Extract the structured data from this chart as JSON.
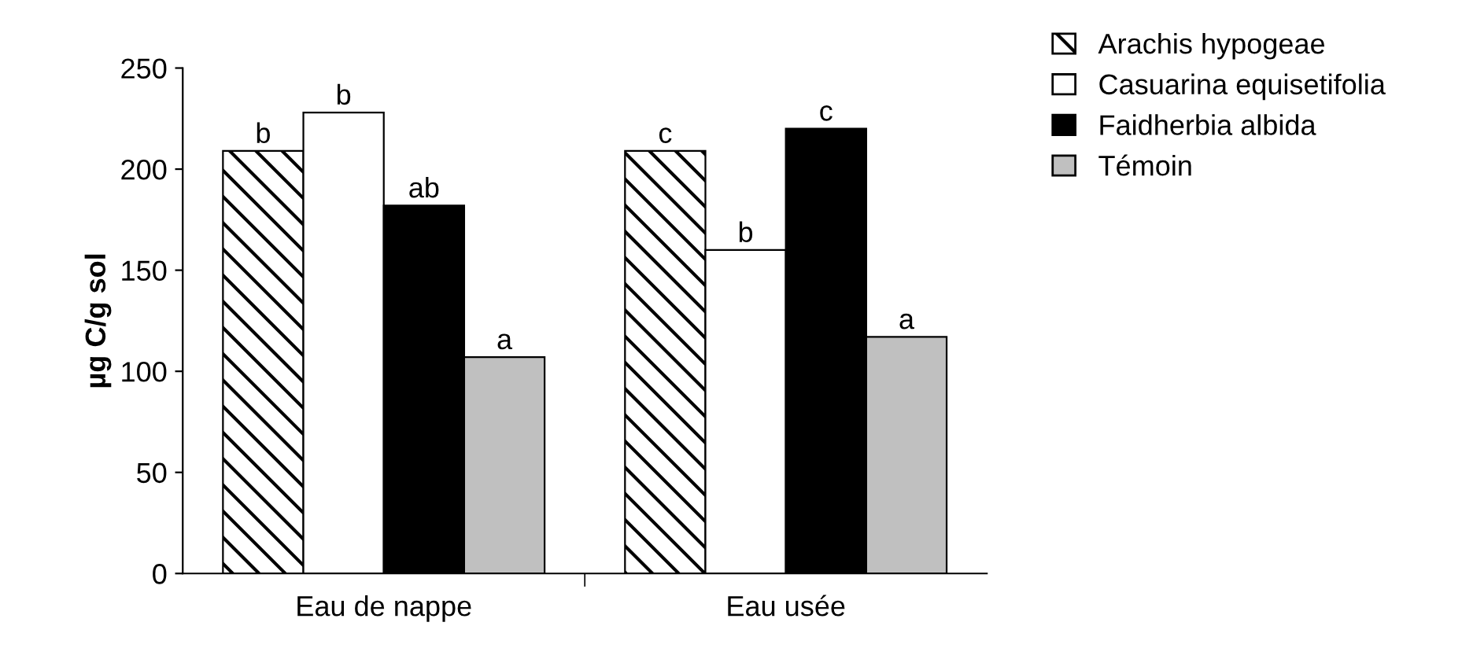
{
  "chart_data": {
    "type": "bar",
    "ylabel": "µg C/g sol",
    "categories": [
      "Eau de nappe",
      "Eau usée"
    ],
    "series": [
      {
        "name": "Arachis hypogeae",
        "color": "#000000",
        "values": [
          209,
          209
        ],
        "value_labels": [
          "b",
          "c"
        ]
      },
      {
        "name": "Casuarina equisetifolia",
        "color": "#ffffff",
        "values": [
          228,
          160
        ],
        "value_labels": [
          "b",
          "b"
        ]
      },
      {
        "name": "Faidherbia albida",
        "color": "#000000",
        "values": [
          182,
          220
        ],
        "value_labels": [
          "ab",
          "c"
        ]
      },
      {
        "name": "Témoin",
        "color": "#c0c0c0",
        "values": [
          107,
          117
        ],
        "value_labels": [
          "a",
          "a"
        ]
      }
    ],
    "ylim": [
      0,
      250
    ],
    "yticks": [
      0,
      50,
      100,
      150,
      200,
      250
    ],
    "grid": false,
    "legend": "top right"
  }
}
